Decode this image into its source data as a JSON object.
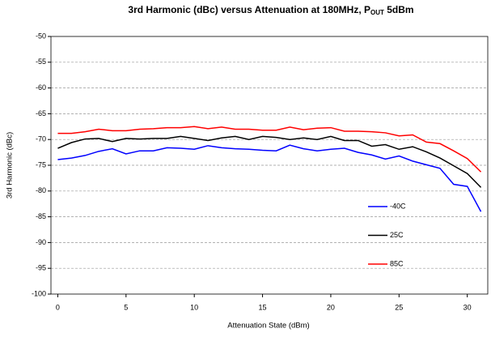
{
  "chart_data": {
    "type": "line",
    "title": "3rd Harmonic (dBc) versus Attenuation at 180MHz, P",
    "title_subscript": "OUT",
    "title_suffix": " 5dBm",
    "x_label": "Attenuation State (dBm)",
    "y_label": "3rd Harmonic (dBc)",
    "x": [
      0,
      1,
      2,
      3,
      4,
      5,
      6,
      7,
      8,
      9,
      10,
      11,
      12,
      13,
      14,
      15,
      16,
      17,
      18,
      19,
      20,
      21,
      22,
      23,
      24,
      25,
      26,
      27,
      28,
      29,
      30,
      31
    ],
    "xlim": [
      -0.5,
      31.5
    ],
    "xticks": [
      0,
      5,
      10,
      15,
      20,
      25,
      30
    ],
    "ylim": [
      -100,
      -50
    ],
    "yticks": [
      -100,
      -95,
      -90,
      -85,
      -80,
      -75,
      -70,
      -65,
      -60,
      -55,
      -50
    ],
    "grid": true,
    "legend": "lower-right",
    "series": [
      {
        "name": "-40C",
        "color": "#0000ff",
        "values": [
          -73.9,
          -73.6,
          -73.1,
          -72.3,
          -71.8,
          -72.8,
          -72.2,
          -72.2,
          -71.6,
          -71.7,
          -71.9,
          -71.2,
          -71.6,
          -71.8,
          -71.9,
          -72.1,
          -72.2,
          -71.1,
          -71.8,
          -72.2,
          -71.9,
          -71.7,
          -72.5,
          -73,
          -73.8,
          -73.2,
          -74.2,
          -74.9,
          -75.6,
          -78.7,
          -79.1,
          -84
        ]
      },
      {
        "name": "25C",
        "color": "#000000",
        "values": [
          -71.7,
          -70.6,
          -69.9,
          -69.8,
          -70.4,
          -69.8,
          -69.9,
          -69.8,
          -69.8,
          -69.4,
          -69.8,
          -70.2,
          -69.7,
          -69.4,
          -70,
          -69.4,
          -69.6,
          -70,
          -69.7,
          -70,
          -69.4,
          -70.2,
          -70.2,
          -71.3,
          -71,
          -71.9,
          -71.4,
          -72.4,
          -73.6,
          -75.1,
          -76.6,
          -79.3
        ]
      },
      {
        "name": "85C",
        "color": "#ff0000",
        "values": [
          -68.8,
          -68.8,
          -68.5,
          -68,
          -68.3,
          -68.3,
          -68,
          -67.9,
          -67.7,
          -67.7,
          -67.5,
          -67.9,
          -67.6,
          -68,
          -68,
          -68.2,
          -68.2,
          -67.6,
          -68.1,
          -67.8,
          -67.7,
          -68.4,
          -68.4,
          -68.5,
          -68.7,
          -69.3,
          -69.1,
          -70.5,
          -70.8,
          -72.2,
          -73.7,
          -76.3
        ]
      }
    ]
  }
}
